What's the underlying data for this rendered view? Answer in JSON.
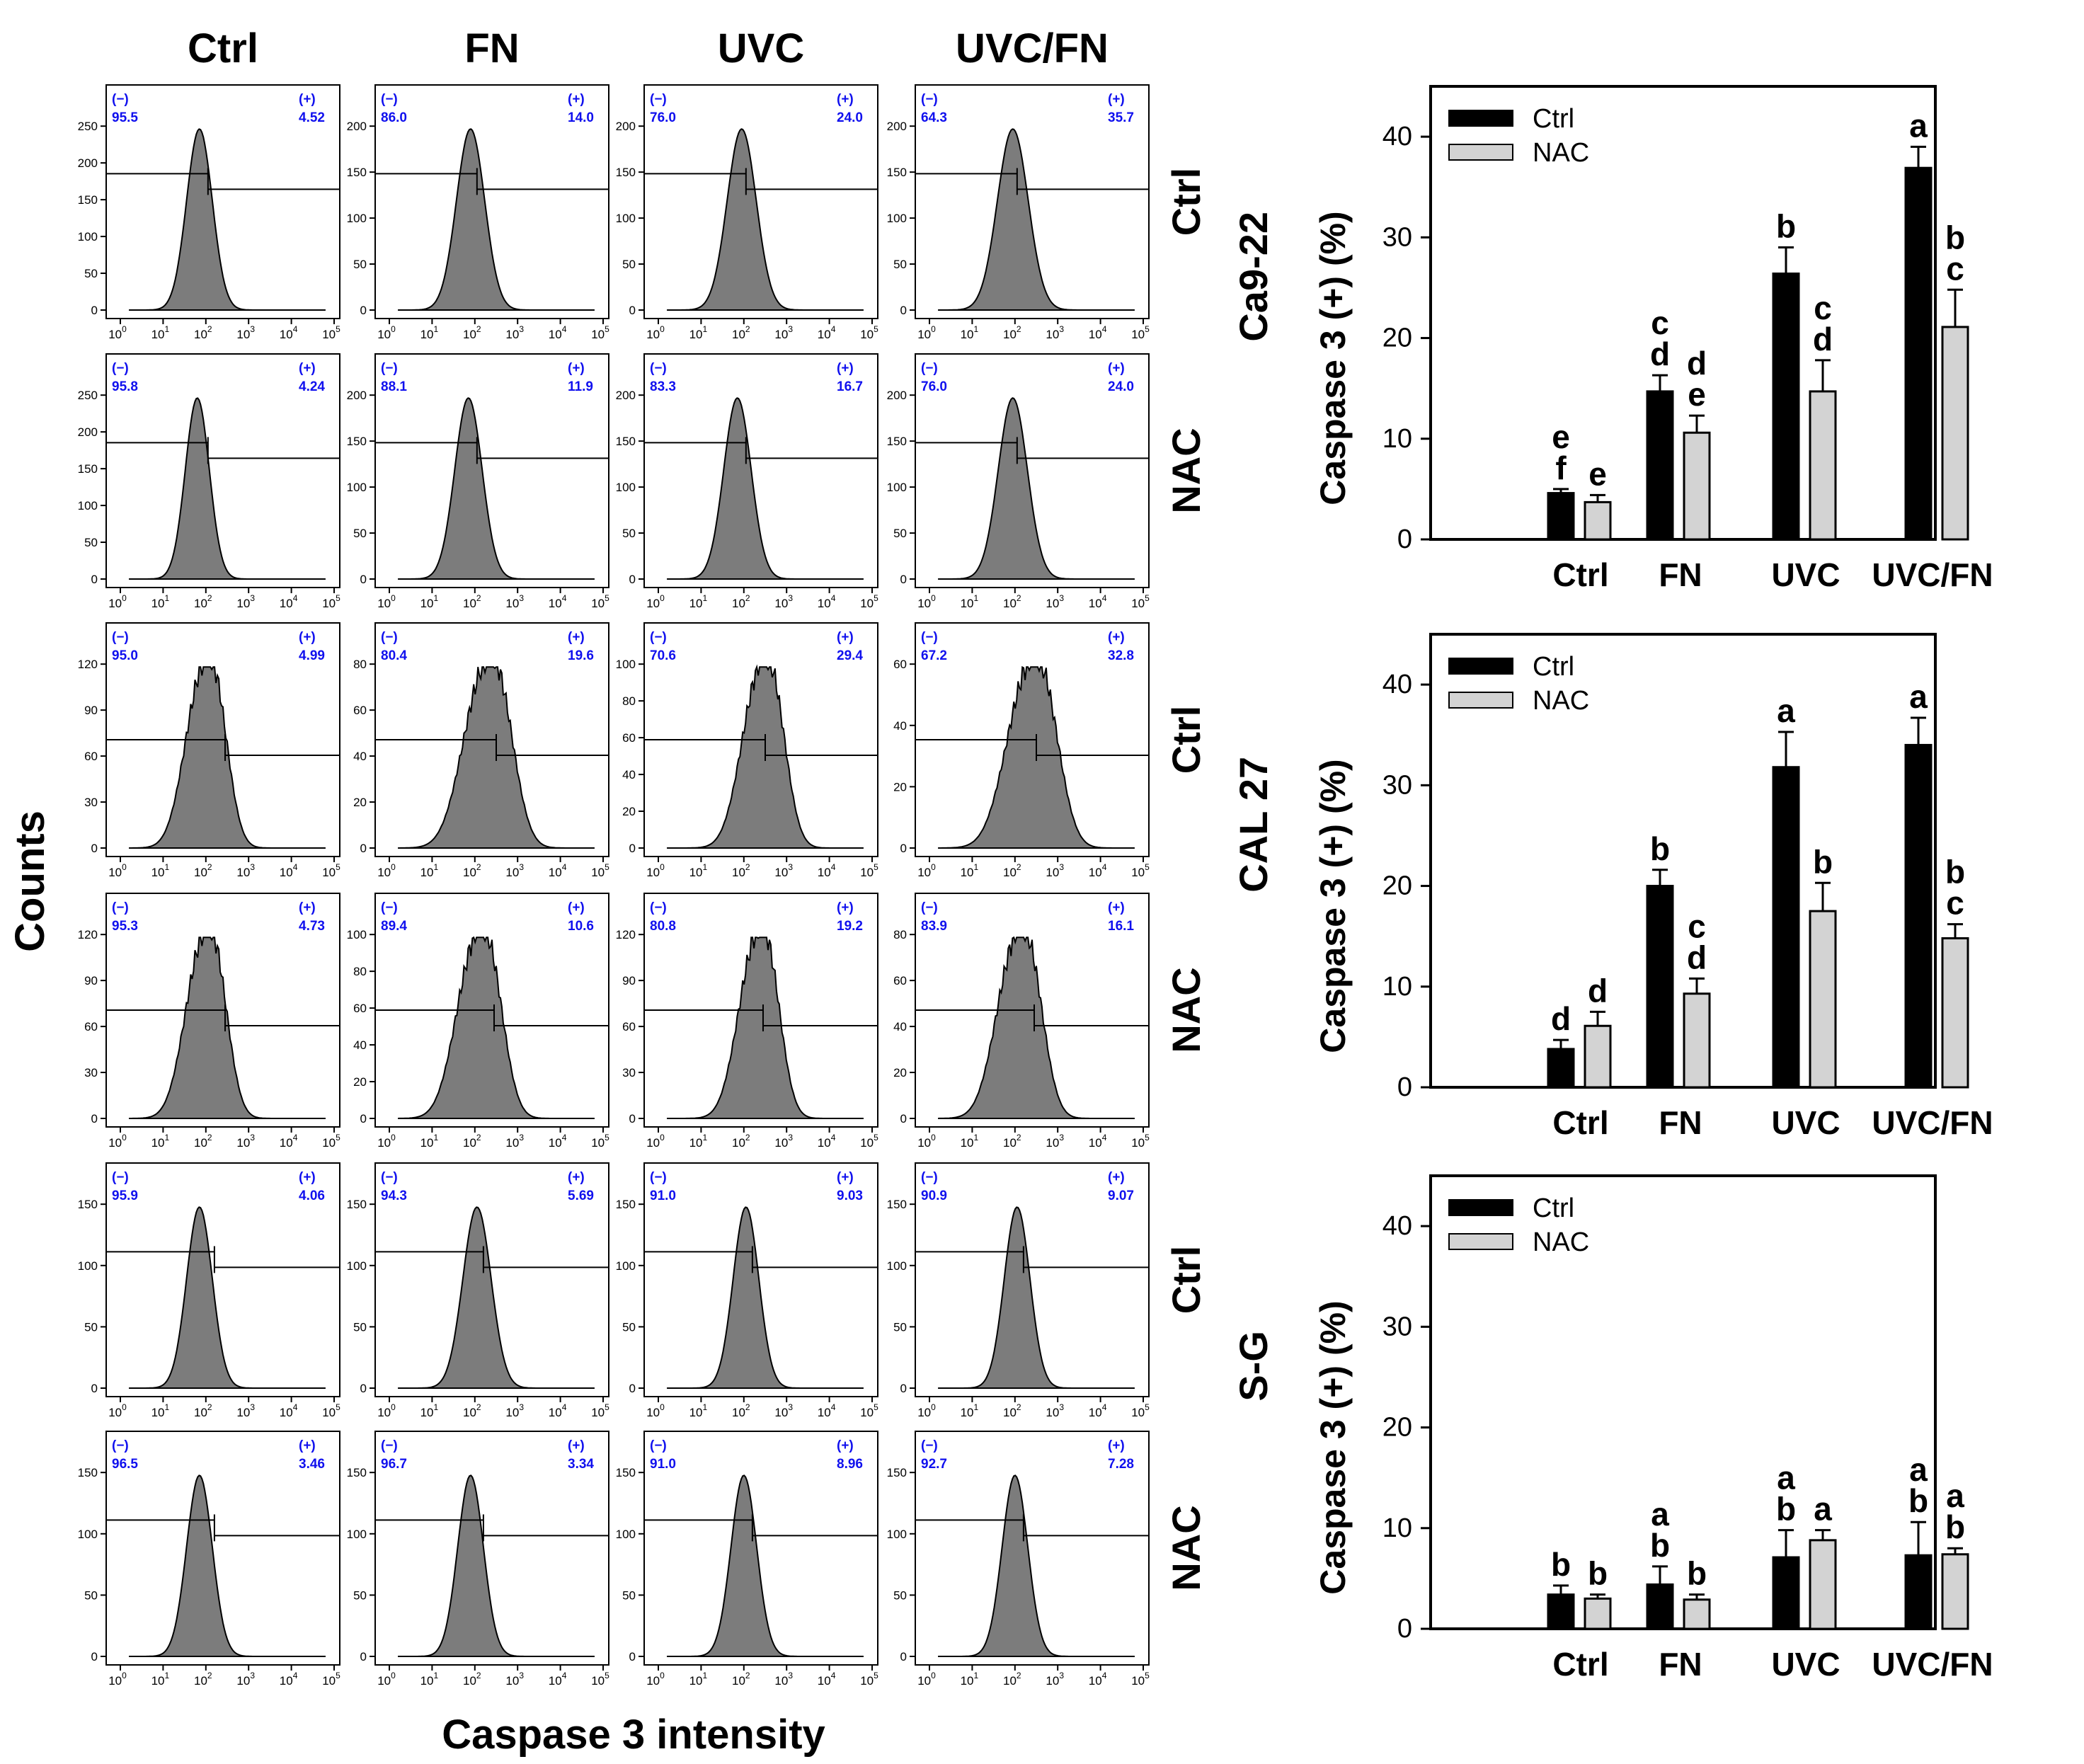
{
  "conditions": [
    "Ctrl",
    "FN",
    "UVC",
    "UVC/FN"
  ],
  "treatments": [
    "Ctrl",
    "NAC"
  ],
  "cell_lines": [
    "Ca9-22",
    "CAL 27",
    "S-G"
  ],
  "histogram_axis": {
    "y_label": "Counts",
    "x_label": "Caspase 3 intensity",
    "x_ticks": [
      "0",
      "1",
      "2",
      "3",
      "4",
      "5"
    ],
    "x_tick_base": "10",
    "gate_neg": "(−)",
    "gate_pos": "(+)"
  },
  "colors": {
    "gate_text": "#1010ee",
    "hist_fill": "#7c7c7c",
    "ctrl_bar": "#000000",
    "nac_bar": "#d3d3d3"
  },
  "chart_data": [
    {
      "type": "histogram-panel-grid",
      "title": "Caspase 3 flow cytometry histograms",
      "row_groups": [
        {
          "cell_line": "Ca9-22",
          "treatment": "Ctrl",
          "y_ticks": [
            0,
            50,
            100,
            150,
            200,
            250
          ],
          "panels": [
            {
              "condition": "Ctrl",
              "neg": "95.5",
              "pos": "4.52",
              "peak_decade": 1.85,
              "width": 0.3,
              "ymax": 250,
              "gate_decade": 2.05,
              "noise": 0
            },
            {
              "condition": "FN",
              "neg": "86.0",
              "pos": "14.0",
              "peak_decade": 1.9,
              "width": 0.33,
              "ymax": 200,
              "gate_decade": 2.05,
              "noise": 0
            },
            {
              "condition": "UVC",
              "neg": "76.0",
              "pos": "24.0",
              "peak_decade": 1.95,
              "width": 0.34,
              "ymax": 250,
              "gate_decade": 2.05,
              "noise": 0
            },
            {
              "condition": "UVC/FN",
              "neg": "64.3",
              "pos": "35.7",
              "peak_decade": 1.95,
              "width": 0.36,
              "ymax": 200,
              "gate_decade": 2.05,
              "noise": 0
            }
          ],
          "panel_y_ticks": [
            [
              0,
              50,
              100,
              150,
              200,
              250
            ],
            [
              0,
              50,
              100,
              150,
              200
            ],
            [
              0,
              50,
              100,
              150,
              200
            ],
            [
              0,
              50,
              100,
              150,
              200
            ]
          ]
        },
        {
          "cell_line": "Ca9-22",
          "treatment": "NAC",
          "y_ticks": [
            0,
            50,
            100,
            150,
            200,
            250
          ],
          "panels": [
            {
              "condition": "Ctrl",
              "neg": "95.8",
              "pos": "4.24",
              "peak_decade": 1.8,
              "width": 0.28,
              "ymax": 250,
              "gate_decade": 2.05,
              "noise": 0
            },
            {
              "condition": "FN",
              "neg": "88.1",
              "pos": "11.9",
              "peak_decade": 1.85,
              "width": 0.32,
              "ymax": 200,
              "gate_decade": 2.05,
              "noise": 0
            },
            {
              "condition": "UVC",
              "neg": "83.3",
              "pos": "16.7",
              "peak_decade": 1.85,
              "width": 0.32,
              "ymax": 250,
              "gate_decade": 2.05,
              "noise": 0
            },
            {
              "condition": "UVC/FN",
              "neg": "76.0",
              "pos": "24.0",
              "peak_decade": 1.95,
              "width": 0.34,
              "ymax": 200,
              "gate_decade": 2.05,
              "noise": 0
            }
          ],
          "panel_y_ticks": [
            [
              0,
              50,
              100,
              150,
              200,
              250
            ],
            [
              0,
              50,
              100,
              150,
              200
            ],
            [
              0,
              50,
              100,
              150,
              200
            ],
            [
              0,
              50,
              100,
              150,
              200
            ]
          ]
        },
        {
          "cell_line": "CAL 27",
          "treatment": "Ctrl",
          "y_ticks": [
            0,
            30,
            60,
            90,
            120
          ],
          "panels": [
            {
              "condition": "Ctrl",
              "neg": "95.0",
              "pos": "4.99",
              "peak_decade": 2.0,
              "width": 0.5,
              "ymax": 120,
              "gate_decade": 2.45,
              "noise": 1
            },
            {
              "condition": "FN",
              "neg": "80.4",
              "pos": "19.6",
              "peak_decade": 2.3,
              "width": 0.6,
              "ymax": 80,
              "gate_decade": 2.5,
              "noise": 1
            },
            {
              "condition": "UVC",
              "neg": "70.6",
              "pos": "29.4",
              "peak_decade": 2.45,
              "width": 0.52,
              "ymax": 100,
              "gate_decade": 2.5,
              "noise": 1
            },
            {
              "condition": "UVC/FN",
              "neg": "67.2",
              "pos": "32.8",
              "peak_decade": 2.4,
              "width": 0.62,
              "ymax": 60,
              "gate_decade": 2.5,
              "noise": 1
            }
          ],
          "panel_y_ticks": [
            [
              0,
              30,
              60,
              90,
              120
            ],
            [
              0,
              20,
              40,
              60,
              80
            ],
            [
              0,
              20,
              40,
              60,
              80,
              100
            ],
            [
              0,
              20,
              40,
              60
            ]
          ]
        },
        {
          "cell_line": "CAL 27",
          "treatment": "NAC",
          "y_ticks": [
            0,
            30,
            60,
            90,
            120
          ],
          "panels": [
            {
              "condition": "Ctrl",
              "neg": "95.3",
              "pos": "4.73",
              "peak_decade": 2.0,
              "width": 0.5,
              "ymax": 120,
              "gate_decade": 2.45,
              "noise": 1
            },
            {
              "condition": "FN",
              "neg": "89.4",
              "pos": "10.6",
              "peak_decade": 2.1,
              "width": 0.55,
              "ymax": 100,
              "gate_decade": 2.45,
              "noise": 1
            },
            {
              "condition": "UVC",
              "neg": "80.8",
              "pos": "19.2",
              "peak_decade": 2.35,
              "width": 0.5,
              "ymax": 120,
              "gate_decade": 2.45,
              "noise": 1
            },
            {
              "condition": "UVC/FN",
              "neg": "83.9",
              "pos": "16.1",
              "peak_decade": 2.1,
              "width": 0.55,
              "ymax": 80,
              "gate_decade": 2.45,
              "noise": 1
            }
          ],
          "panel_y_ticks": [
            [
              0,
              30,
              60,
              90,
              120
            ],
            [
              0,
              20,
              40,
              60,
              80,
              100
            ],
            [
              0,
              30,
              60,
              90,
              120
            ],
            [
              0,
              20,
              40,
              60,
              80
            ]
          ]
        },
        {
          "cell_line": "S-G",
          "treatment": "Ctrl",
          "y_ticks": [
            0,
            50,
            100,
            150
          ],
          "panels": [
            {
              "condition": "Ctrl",
              "neg": "95.9",
              "pos": "4.06",
              "peak_decade": 1.85,
              "width": 0.3,
              "ymax": 150,
              "gate_decade": 2.2,
              "noise": 0
            },
            {
              "condition": "FN",
              "neg": "94.3",
              "pos": "5.69",
              "peak_decade": 2.05,
              "width": 0.33,
              "ymax": 150,
              "gate_decade": 2.2,
              "noise": 0
            },
            {
              "condition": "UVC",
              "neg": "91.0",
              "pos": "9.03",
              "peak_decade": 2.05,
              "width": 0.3,
              "ymax": 150,
              "gate_decade": 2.2,
              "noise": 0
            },
            {
              "condition": "UVC/FN",
              "neg": "90.9",
              "pos": "9.07",
              "peak_decade": 2.05,
              "width": 0.3,
              "ymax": 150,
              "gate_decade": 2.2,
              "noise": 0
            }
          ],
          "panel_y_ticks": [
            [
              0,
              50,
              100,
              150
            ],
            [
              0,
              50,
              100,
              150
            ],
            [
              0,
              50,
              100,
              150
            ],
            [
              0,
              50,
              100,
              150
            ]
          ]
        },
        {
          "cell_line": "S-G",
          "treatment": "NAC",
          "y_ticks": [
            0,
            50,
            100,
            150
          ],
          "panels": [
            {
              "condition": "Ctrl",
              "neg": "96.5",
              "pos": "3.46",
              "peak_decade": 1.85,
              "width": 0.3,
              "ymax": 150,
              "gate_decade": 2.2,
              "noise": 0
            },
            {
              "condition": "FN",
              "neg": "96.7",
              "pos": "3.34",
              "peak_decade": 1.9,
              "width": 0.3,
              "ymax": 150,
              "gate_decade": 2.2,
              "noise": 0
            },
            {
              "condition": "UVC",
              "neg": "91.0",
              "pos": "8.96",
              "peak_decade": 2.0,
              "width": 0.3,
              "ymax": 150,
              "gate_decade": 2.2,
              "noise": 0
            },
            {
              "condition": "UVC/FN",
              "neg": "92.7",
              "pos": "7.28",
              "peak_decade": 2.0,
              "width": 0.3,
              "ymax": 150,
              "gate_decade": 2.2,
              "noise": 0
            }
          ],
          "panel_y_ticks": [
            [
              0,
              50,
              100,
              150
            ],
            [
              0,
              50,
              100,
              150
            ],
            [
              0,
              50,
              100,
              150
            ],
            [
              0,
              50,
              100,
              150
            ]
          ]
        }
      ]
    },
    {
      "type": "bar",
      "title": "Ca9-22",
      "ylabel": "Caspase 3 (+) (%)",
      "ylim": [
        0,
        45
      ],
      "yticks": [
        0,
        10,
        20,
        30,
        40
      ],
      "categories": [
        "Ctrl",
        "FN",
        "UVC",
        "UVC/FN"
      ],
      "legend": [
        "Ctrl",
        "NAC"
      ],
      "series": [
        {
          "name": "Ctrl",
          "values": [
            4.6,
            14.7,
            26.4,
            36.9
          ],
          "errors": [
            0.4,
            1.6,
            2.6,
            2.1
          ],
          "letters": [
            "e\nf",
            "c\nd",
            "b",
            "a"
          ]
        },
        {
          "name": "NAC",
          "values": [
            3.7,
            10.6,
            14.7,
            21.1
          ],
          "errors": [
            0.7,
            1.7,
            3.1,
            3.7
          ],
          "letters": [
            "e",
            "d\ne",
            "c\nd",
            "b\nc"
          ]
        }
      ]
    },
    {
      "type": "bar",
      "title": "CAL 27",
      "ylabel": "Caspase 3 (+) (%)",
      "ylim": [
        0,
        45
      ],
      "yticks": [
        0,
        10,
        20,
        30,
        40
      ],
      "categories": [
        "Ctrl",
        "FN",
        "UVC",
        "UVC/FN"
      ],
      "legend": [
        "Ctrl",
        "NAC"
      ],
      "series": [
        {
          "name": "Ctrl",
          "values": [
            3.8,
            20.0,
            31.8,
            34.0
          ],
          "errors": [
            0.9,
            1.6,
            3.5,
            2.7
          ],
          "letters": [
            "d",
            "b",
            "a",
            "a"
          ]
        },
        {
          "name": "NAC",
          "values": [
            6.1,
            9.3,
            17.5,
            14.8
          ],
          "errors": [
            1.4,
            1.5,
            2.8,
            1.4
          ],
          "letters": [
            "d",
            "c\nd",
            "b",
            "b\nc"
          ]
        }
      ]
    },
    {
      "type": "bar",
      "title": "S-G",
      "ylabel": "Caspase 3 (+) (%)",
      "ylim": [
        0,
        45
      ],
      "yticks": [
        0,
        10,
        20,
        30,
        40
      ],
      "categories": [
        "Ctrl",
        "FN",
        "UVC",
        "UVC/FN"
      ],
      "legend": [
        "Ctrl",
        "NAC"
      ],
      "series": [
        {
          "name": "Ctrl",
          "values": [
            3.4,
            4.4,
            7.1,
            7.3
          ],
          "errors": [
            0.9,
            1.8,
            2.7,
            3.3
          ],
          "letters": [
            "b",
            "a\nb",
            "a\nb",
            "a\nb"
          ]
        },
        {
          "name": "NAC",
          "values": [
            3.0,
            2.9,
            8.8,
            7.4
          ],
          "errors": [
            0.4,
            0.5,
            1.0,
            0.6
          ],
          "letters": [
            "b",
            "b",
            "a",
            "a\nb"
          ]
        }
      ]
    }
  ]
}
